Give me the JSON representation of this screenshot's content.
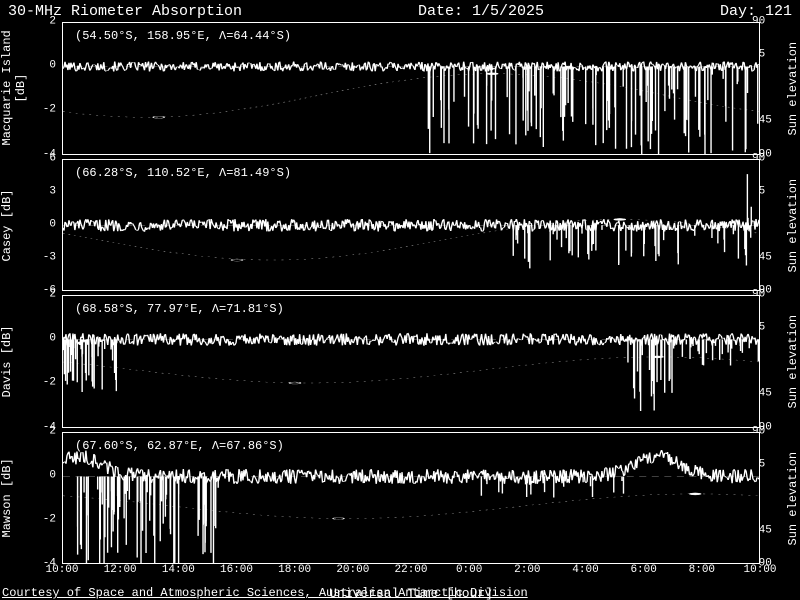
{
  "header": {
    "title": "30-MHz Riometer Absorption",
    "date_label": "Date: 1/5/2025",
    "day_label": "Day: 121"
  },
  "xaxis": {
    "label": "Universal Time [hour]",
    "start_hour": 10,
    "hours": 24,
    "ticks": [
      "10:00",
      "12:00",
      "14:00",
      "16:00",
      "18:00",
      "20:00",
      "22:00",
      "0:00",
      "2:00",
      "4:00",
      "6:00",
      "8:00",
      "10:00"
    ]
  },
  "colors": {
    "background": "#000000",
    "foreground": "#ffffff",
    "trace": "#ffffff",
    "grid": "#ffffff"
  },
  "right_axis": {
    "label": "Sun elevation [deg]",
    "min": -90,
    "max": 90,
    "ticks": [
      -90,
      -45,
      0,
      45,
      90
    ]
  },
  "panels": [
    {
      "name": "macquarie",
      "left_label": "Macquarie Island [dB]",
      "station_text": "(54.50°S, 158.95°E, Λ=64.44°S)",
      "y_min": -4,
      "y_max": 2,
      "y_ticks": [
        -4,
        -2,
        0,
        2
      ],
      "sun_min_hour": 13.3,
      "sun_max_hour": 0.8,
      "sun_min_elev": -40,
      "sun_max_elev": 20,
      "noise_amp": 0.08,
      "spikes": [
        {
          "h0": 22.5,
          "h1": 34.0,
          "density": 110,
          "dmin": -4.5,
          "dmax": -0.3
        }
      ]
    },
    {
      "name": "casey",
      "left_label": "Casey [dB]",
      "station_text": "(66.28°S, 110.52°E, Λ=81.49°S)",
      "y_min": -6,
      "y_max": 6,
      "y_ticks": [
        -6,
        -3,
        0,
        3,
        6
      ],
      "sun_min_hour": 16.0,
      "sun_max_hour": 5.2,
      "sun_min_elev": -48,
      "sun_max_elev": 8,
      "noise_amp": 0.1,
      "spikes": [
        {
          "h0": 25.5,
          "h1": 34.0,
          "density": 55,
          "dmin": -4.0,
          "dmax": -0.3
        },
        {
          "h0": 33.6,
          "h1": 34.0,
          "density": 3,
          "dmin": 0.5,
          "dmax": 5.8,
          "up": true
        }
      ]
    },
    {
      "name": "davis",
      "left_label": "Davis [dB]",
      "station_text": "(68.58°S,  77.97°E, Λ=71.81°S)",
      "y_min": -4,
      "y_max": 2,
      "y_ticks": [
        -4,
        -2,
        0,
        2
      ],
      "sun_min_hour": 18.0,
      "sun_max_hour": 6.5,
      "sun_min_elev": -30,
      "sun_max_elev": 6,
      "noise_amp": 0.1,
      "spikes": [
        {
          "h0": 10.0,
          "h1": 12.0,
          "density": 35,
          "dmin": -2.5,
          "dmax": -0.3
        },
        {
          "h0": 29.0,
          "h1": 31.0,
          "density": 20,
          "dmin": -3.5,
          "dmax": -0.4
        },
        {
          "h0": 31.0,
          "h1": 34.0,
          "density": 25,
          "dmin": -1.2,
          "dmax": -0.2
        }
      ]
    },
    {
      "name": "mawson",
      "left_label": "Mawson [dB]",
      "station_text": "(67.60°S,  62.87°E, Λ=67.86°S)",
      "y_min": -4,
      "y_max": 2,
      "y_ticks": [
        -4,
        -2,
        0,
        2
      ],
      "sun_min_hour": 19.5,
      "sun_max_hour": 7.8,
      "sun_min_elev": -28,
      "sun_max_elev": 6,
      "noise_amp": 0.12,
      "baseline_bumps": [
        {
          "h": 10.5,
          "v": 0.9
        },
        {
          "h": 30.5,
          "v": 0.9
        }
      ],
      "spikes": [
        {
          "h0": 10.5,
          "h1": 14.0,
          "density": 60,
          "dmin": -4.5,
          "dmax": -0.5
        },
        {
          "h0": 14.5,
          "h1": 15.5,
          "density": 15,
          "dmin": -4.5,
          "dmax": -0.5
        },
        {
          "h0": 24.0,
          "h1": 30.0,
          "density": 20,
          "dmin": -1.0,
          "dmax": -0.2
        }
      ]
    }
  ],
  "credit": "Courtesy of Space and Atmospheric Sciences, Australian Antarctic Division"
}
